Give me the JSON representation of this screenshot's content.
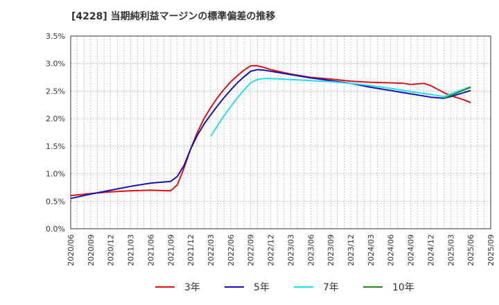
{
  "chart_data": {
    "type": "line",
    "title": "[4228]  当期純利益マージンの標準偏差の推移",
    "xlabel": "",
    "ylabel": "",
    "ylim": [
      0,
      3.5
    ],
    "yticks": [
      "0.0%",
      "0.5%",
      "1.0%",
      "1.5%",
      "2.0%",
      "2.5%",
      "3.0%",
      "3.5%"
    ],
    "xticks": [
      "2020/06",
      "2020/09",
      "2020/12",
      "2021/03",
      "2021/06",
      "2021/09",
      "2021/12",
      "2022/03",
      "2022/06",
      "2022/09",
      "2022/12",
      "2023/03",
      "2023/06",
      "2023/09",
      "2023/12",
      "2024/03",
      "2024/06",
      "2024/09",
      "2024/12",
      "2025/03",
      "2025/06",
      "2025/09"
    ],
    "grid": true,
    "legend_position": "bottom",
    "series": [
      {
        "name": "3年",
        "color": "#dd1111",
        "points": [
          [
            "2020/06",
            0.6
          ],
          [
            "2020/09",
            0.64
          ],
          [
            "2020/12",
            0.67
          ],
          [
            "2021/03",
            0.69
          ],
          [
            "2021/06",
            0.7
          ],
          [
            "2021/09",
            0.69
          ],
          [
            "2021/10",
            0.8
          ],
          [
            "2021/11",
            1.1
          ],
          [
            "2021/12",
            1.45
          ],
          [
            "2022/01",
            1.75
          ],
          [
            "2022/02",
            2.0
          ],
          [
            "2022/03",
            2.2
          ],
          [
            "2022/04",
            2.38
          ],
          [
            "2022/05",
            2.53
          ],
          [
            "2022/06",
            2.67
          ],
          [
            "2022/07",
            2.78
          ],
          [
            "2022/08",
            2.88
          ],
          [
            "2022/09",
            2.96
          ],
          [
            "2022/10",
            2.96
          ],
          [
            "2022/11",
            2.93
          ],
          [
            "2022/12",
            2.89
          ],
          [
            "2023/03",
            2.81
          ],
          [
            "2023/06",
            2.75
          ],
          [
            "2023/09",
            2.72
          ],
          [
            "2023/12",
            2.68
          ],
          [
            "2024/03",
            2.66
          ],
          [
            "2024/06",
            2.65
          ],
          [
            "2024/08",
            2.64
          ],
          [
            "2024/09",
            2.62
          ],
          [
            "2024/11",
            2.64
          ],
          [
            "2024/12",
            2.6
          ],
          [
            "2025/02",
            2.47
          ],
          [
            "2025/03",
            2.42
          ],
          [
            "2025/05",
            2.34
          ],
          [
            "2025/06",
            2.29
          ]
        ]
      },
      {
        "name": "5年",
        "color": "#1111bb",
        "points": [
          [
            "2020/06",
            0.55
          ],
          [
            "2020/09",
            0.63
          ],
          [
            "2020/12",
            0.7
          ],
          [
            "2021/03",
            0.77
          ],
          [
            "2021/06",
            0.83
          ],
          [
            "2021/09",
            0.86
          ],
          [
            "2021/10",
            0.95
          ],
          [
            "2021/11",
            1.15
          ],
          [
            "2021/12",
            1.45
          ],
          [
            "2022/01",
            1.7
          ],
          [
            "2022/02",
            1.9
          ],
          [
            "2022/03",
            2.07
          ],
          [
            "2022/04",
            2.23
          ],
          [
            "2022/05",
            2.38
          ],
          [
            "2022/06",
            2.52
          ],
          [
            "2022/07",
            2.65
          ],
          [
            "2022/08",
            2.76
          ],
          [
            "2022/09",
            2.86
          ],
          [
            "2022/10",
            2.89
          ],
          [
            "2022/11",
            2.88
          ],
          [
            "2022/12",
            2.86
          ],
          [
            "2023/03",
            2.8
          ],
          [
            "2023/06",
            2.74
          ],
          [
            "2023/09",
            2.69
          ],
          [
            "2023/12",
            2.64
          ],
          [
            "2024/03",
            2.57
          ],
          [
            "2024/06",
            2.51
          ],
          [
            "2024/09",
            2.45
          ],
          [
            "2024/12",
            2.39
          ],
          [
            "2025/02",
            2.37
          ],
          [
            "2025/03",
            2.4
          ],
          [
            "2025/06",
            2.51
          ]
        ]
      },
      {
        "name": "7年",
        "color": "#22ddee",
        "points": [
          [
            "2022/03",
            1.68
          ],
          [
            "2022/04",
            1.87
          ],
          [
            "2022/05",
            2.05
          ],
          [
            "2022/06",
            2.22
          ],
          [
            "2022/07",
            2.38
          ],
          [
            "2022/08",
            2.52
          ],
          [
            "2022/09",
            2.65
          ],
          [
            "2022/10",
            2.71
          ],
          [
            "2022/11",
            2.73
          ],
          [
            "2022/12",
            2.73
          ],
          [
            "2023/03",
            2.71
          ],
          [
            "2023/06",
            2.69
          ],
          [
            "2023/09",
            2.67
          ],
          [
            "2023/12",
            2.64
          ],
          [
            "2024/03",
            2.6
          ],
          [
            "2024/06",
            2.55
          ],
          [
            "2024/09",
            2.49
          ],
          [
            "2024/12",
            2.44
          ],
          [
            "2025/02",
            2.4
          ],
          [
            "2025/03",
            2.45
          ],
          [
            "2025/06",
            2.58
          ]
        ]
      },
      {
        "name": "10年",
        "color": "#228822",
        "points": [
          [
            "2025/02",
            2.37
          ],
          [
            "2025/03",
            2.42
          ],
          [
            "2025/06",
            2.57
          ]
        ]
      }
    ]
  }
}
